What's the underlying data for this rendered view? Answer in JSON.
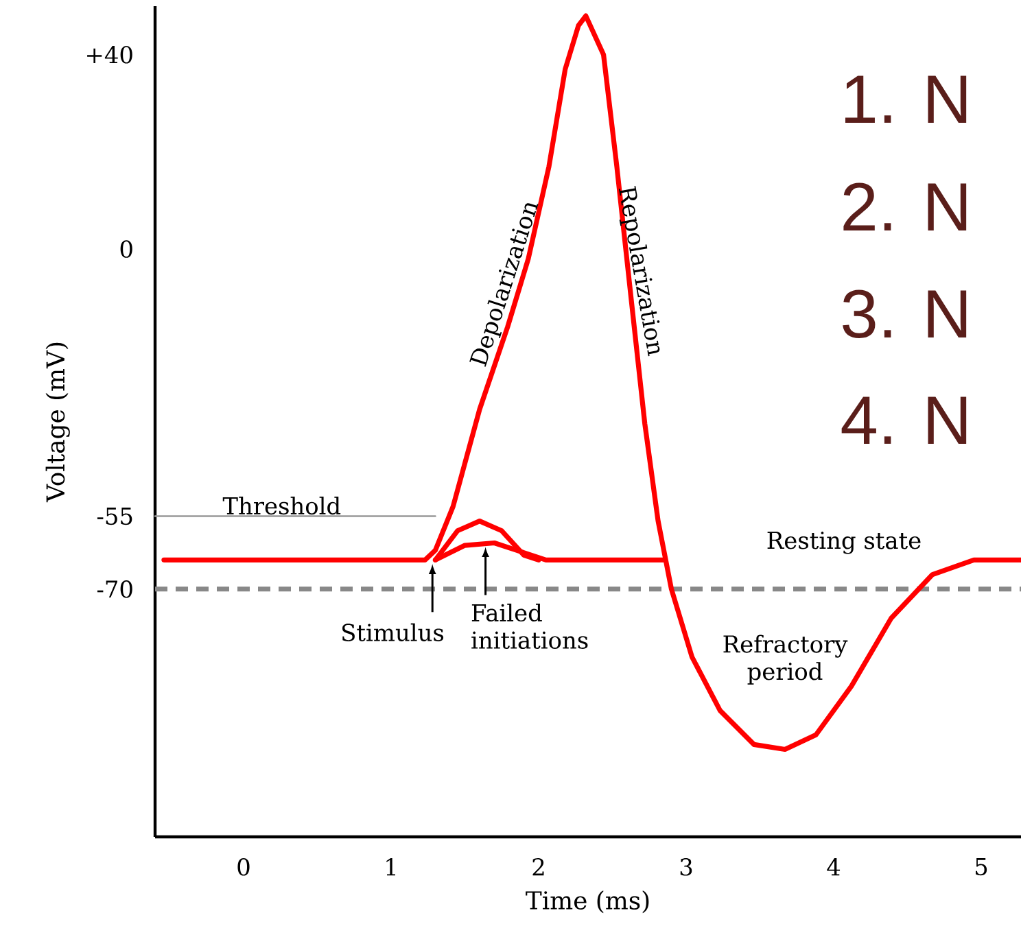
{
  "chart_data": {
    "type": "line",
    "xlabel": "Time (ms)",
    "ylabel": "Voltage (mV)",
    "xlim": [
      -0.6,
      5.27
    ],
    "ylim": [
      -121,
      50
    ],
    "xticks": [
      0,
      1,
      2,
      3,
      4,
      5
    ],
    "yticks": [
      {
        "value": 40,
        "label": "+40"
      },
      0,
      -55,
      -70
    ],
    "grid": false,
    "marker": "none",
    "series": [
      {
        "color": "#999999",
        "name": "Threshold",
        "x": [
          -0.6,
          1.3
        ],
        "values": [
          -55,
          -55
        ]
      },
      {
        "color": "#ff0000",
        "x": [
          -0.54,
          1.23,
          1.3,
          1.42,
          1.6,
          1.79,
          1.93,
          2.07,
          2.18,
          2.27,
          2.32,
          2.44,
          2.53,
          2.63,
          2.72,
          2.81,
          2.9,
          3.04,
          3.23,
          3.46,
          3.67,
          3.88,
          4.12,
          4.39,
          4.67,
          4.95,
          5.27
        ],
        "values": [
          -64,
          -64,
          -62,
          -53,
          -33,
          -16,
          -2,
          17,
          37,
          46,
          48,
          40,
          17,
          -11,
          -36,
          -56,
          -70,
          -84,
          -95,
          -102,
          -103,
          -100,
          -90,
          -76,
          -67,
          -64,
          -64
        ]
      },
      {
        "color": "#ff0000",
        "x": [
          1.3,
          1.45,
          1.6,
          1.75,
          1.9,
          2.0
        ],
        "values": [
          -64,
          -58,
          -56,
          -58,
          -63,
          -64
        ]
      },
      {
        "color": "#ff0000",
        "x": [
          1.3,
          1.5,
          1.7,
          1.85,
          2.05,
          2.85
        ],
        "values": [
          -64,
          -61,
          -60.5,
          -62,
          -64,
          -64
        ]
      }
    ],
    "ref_lines": [
      {
        "axis": "y",
        "value": -70,
        "color": "#888888",
        "line_style": "dashed"
      }
    ],
    "annotations": [
      {
        "text": "Depolarization",
        "x": 1.86,
        "y": -8
      },
      {
        "text": "Repolarization",
        "x": 2.6,
        "y": -5
      },
      "Resting state",
      {
        "text": "Stimulus",
        "x": 1.28,
        "y": -64
      },
      {
        "text": "Failed initiations",
        "x": 1.64,
        "y": -60.5
      },
      {
        "text": "Refractory period",
        "x": 3.67,
        "y": -103
      },
      "1. N",
      "2. N",
      "3. N",
      "4. N"
    ]
  }
}
